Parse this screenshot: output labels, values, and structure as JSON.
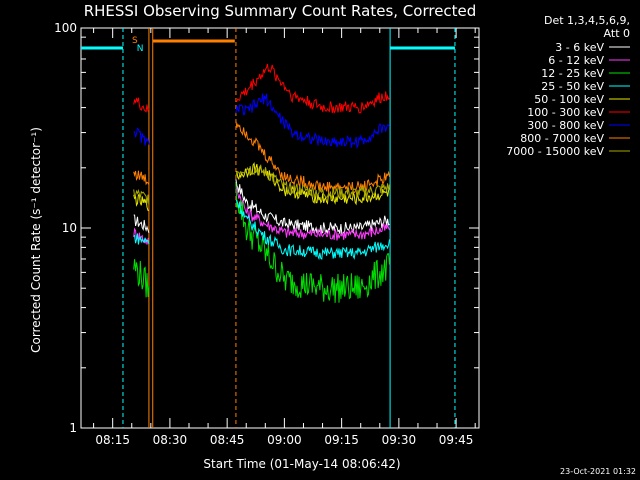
{
  "chart_data": {
    "type": "line",
    "title": "RHESSI Observing Summary Count Rates, Corrected",
    "xlabel": "Start Time (01-May-14 08:06:42)",
    "ylabel": "Corrected Count Rate (s⁻¹ detector⁻¹)",
    "yscale": "log",
    "ylim": [
      1,
      100
    ],
    "xlim_min": [
      6.7,
      111
    ],
    "ytick_labels": [
      "1",
      "10",
      "100"
    ],
    "xtick_labels": [
      "08:15",
      "08:30",
      "08:45",
      "09:00",
      "09:15",
      "09:30",
      "09:45"
    ],
    "timestamp": "23-Oct-2021 01:32",
    "legend": {
      "placement": "top-right",
      "header": [
        "Det 1,3,4,5,6,9,",
        "Att 0"
      ]
    },
    "flags": {
      "saa_label": "S",
      "night_label": "N"
    },
    "segments": [
      [
        20.5,
        24.5
      ],
      [
        47.3,
        87.7
      ]
    ],
    "series": [
      {
        "name": "3 - 6 keV",
        "color": "#ffffff",
        "seg1": [
          11,
          10
        ],
        "seg2": [
          [
            47.3,
            17
          ],
          [
            50,
            13.5
          ],
          [
            55,
            11.5
          ],
          [
            60,
            10.5
          ],
          [
            70,
            10
          ],
          [
            80,
            10
          ],
          [
            87.7,
            11
          ]
        ]
      },
      {
        "name": "6 - 12 keV",
        "color": "#ff3cff",
        "seg1": [
          9.5,
          8.5
        ],
        "seg2": [
          [
            47.3,
            16
          ],
          [
            50,
            12
          ],
          [
            55,
            10.5
          ],
          [
            60,
            9.5
          ],
          [
            70,
            9.3
          ],
          [
            80,
            9.3
          ],
          [
            87.7,
            10
          ]
        ]
      },
      {
        "name": "12 - 25 keV",
        "color": "#00e000",
        "seg1": [
          6.5,
          5
        ],
        "seg2": [
          [
            47.3,
            15
          ],
          [
            50,
            10
          ],
          [
            55,
            7.5
          ],
          [
            60,
            5.5
          ],
          [
            70,
            5
          ],
          [
            80,
            5
          ],
          [
            87.7,
            6.5
          ]
        ]
      },
      {
        "name": "25 - 50 keV",
        "color": "#00ffff",
        "seg1": [
          9,
          8.5
        ],
        "seg2": [
          [
            47.3,
            14
          ],
          [
            50,
            11
          ],
          [
            55,
            9
          ],
          [
            60,
            7.8
          ],
          [
            70,
            7.5
          ],
          [
            80,
            7.5
          ],
          [
            87.7,
            8.5
          ]
        ]
      },
      {
        "name": "50 - 100 keV",
        "color": "#e6e600",
        "seg1": [
          14,
          13
        ],
        "seg2": [
          [
            47.3,
            18
          ],
          [
            52,
            20
          ],
          [
            55,
            19
          ],
          [
            60,
            15.5
          ],
          [
            70,
            14
          ],
          [
            80,
            14
          ],
          [
            87.7,
            15
          ]
        ]
      },
      {
        "name": "100 - 300 keV",
        "color": "#ff0000",
        "seg1": [
          44,
          38
        ],
        "seg2": [
          [
            47.3,
            44
          ],
          [
            50,
            48
          ],
          [
            53,
            56
          ],
          [
            56,
            64
          ],
          [
            58,
            57
          ],
          [
            62,
            46
          ],
          [
            70,
            40
          ],
          [
            80,
            40
          ],
          [
            87.7,
            47
          ]
        ]
      },
      {
        "name": "300 - 800 keV",
        "color": "#0000ff",
        "seg1": [
          31,
          26
        ],
        "seg2": [
          [
            47.3,
            40
          ],
          [
            50,
            38
          ],
          [
            53,
            42
          ],
          [
            55,
            45
          ],
          [
            58,
            37
          ],
          [
            62,
            30
          ],
          [
            70,
            27
          ],
          [
            80,
            27
          ],
          [
            87.7,
            33
          ]
        ]
      },
      {
        "name": "800 - 7000 keV",
        "color": "#ff8000",
        "seg1": [
          19,
          17
        ],
        "seg2": [
          [
            47.3,
            34
          ],
          [
            50,
            30
          ],
          [
            55,
            23
          ],
          [
            60,
            18
          ],
          [
            70,
            16
          ],
          [
            80,
            16
          ],
          [
            87.7,
            18
          ]
        ]
      },
      {
        "name": "7000 - 15000 keV",
        "color": "#a8a800",
        "seg1": [
          15,
          14
        ],
        "seg2": [
          [
            47.3,
            19
          ],
          [
            50,
            20
          ],
          [
            55,
            19
          ],
          [
            60,
            16
          ],
          [
            70,
            15
          ],
          [
            80,
            15
          ],
          [
            87.7,
            16
          ]
        ]
      }
    ]
  }
}
